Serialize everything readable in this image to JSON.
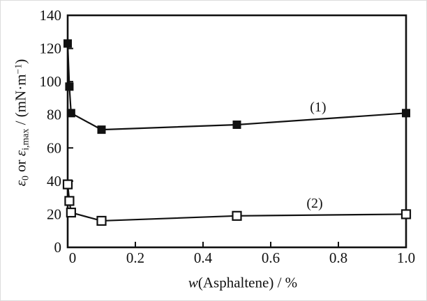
{
  "chart_data": {
    "type": "line",
    "title": "",
    "xlabel": "w(Asphaltene) / %",
    "xlabel_parts": {
      "var": "w",
      "rest": "(Asphaltene) / %"
    },
    "ylabel": "ε₀ or ε_{i,max} / (mN·m⁻¹)",
    "ylabel_parts": {
      "eps1": "ε",
      "sub1": "0",
      "or": " or ",
      "eps2": "ε",
      "sub2": "i,max",
      "mid": " / (mN·m",
      "sup": "−1",
      "end": ")"
    },
    "xlim": [
      0,
      1.0
    ],
    "ylim": [
      0,
      140
    ],
    "xticks": [
      0,
      0.2,
      0.4,
      0.6,
      0.8,
      1.0
    ],
    "xtick_labels": [
      "0",
      "0.2",
      "0.4",
      "0.6",
      "0.8",
      "1.0"
    ],
    "yticks": [
      0,
      20,
      40,
      60,
      80,
      100,
      120,
      140
    ],
    "ytick_labels": [
      "0",
      "20",
      "40",
      "60",
      "80",
      "100",
      "120",
      "140"
    ],
    "grid": false,
    "legend_position": "inline-annotations",
    "axis_color": "#111111",
    "background_color": "#ffffff",
    "series": [
      {
        "name": "(1)",
        "marker": "filled-square",
        "color": "#111111",
        "x": [
          0,
          0.005,
          0.01,
          0.1,
          0.5,
          1.0
        ],
        "y": [
          123,
          97,
          81,
          71,
          74,
          81
        ],
        "label": "(1)",
        "label_at": {
          "x": 0.74,
          "y": 85
        }
      },
      {
        "name": "(2)",
        "marker": "open-square",
        "color": "#111111",
        "x": [
          0,
          0.005,
          0.01,
          0.1,
          0.5,
          1.0
        ],
        "y": [
          38,
          28,
          21,
          16,
          19,
          20
        ],
        "label": "(2)",
        "label_at": {
          "x": 0.73,
          "y": 27
        }
      }
    ]
  }
}
